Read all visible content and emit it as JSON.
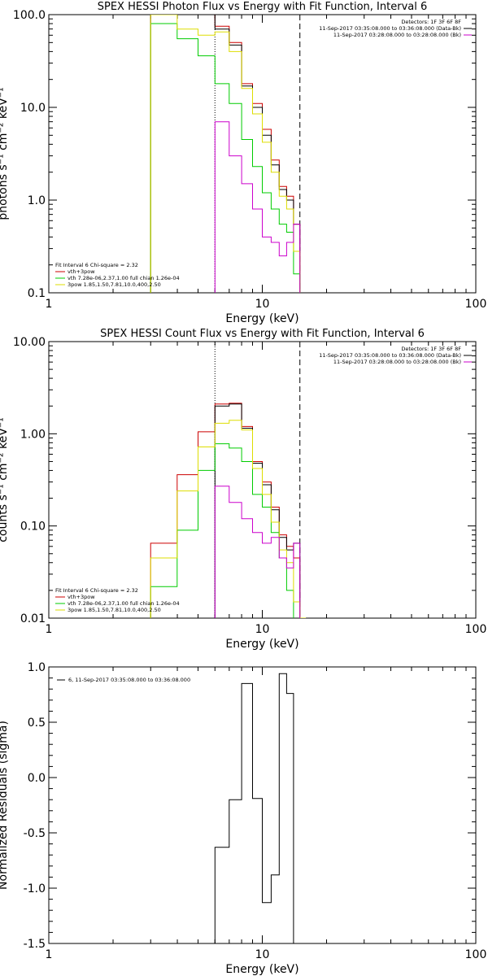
{
  "chart_data": [
    {
      "type": "line",
      "title": "SPEX HESSI Photon Flux vs Energy with Fit Function, Interval 6",
      "xlabel": "Energy (keV)",
      "ylabel": "photons s⁻¹ cm⁻² keV⁻¹",
      "xscale": "log",
      "yscale": "log",
      "xlim": [
        1,
        100
      ],
      "ylim": [
        0.1,
        100
      ],
      "xticks": [
        "1",
        "10",
        "100"
      ],
      "yticks": [
        "0.1",
        "1.0",
        "10.0",
        "100.0"
      ],
      "grid": false,
      "vlines": [
        {
          "x": 6.0,
          "style": "dotted",
          "color": "#000000"
        },
        {
          "x": 15.0,
          "style": "dashed",
          "color": "#000000"
        }
      ],
      "legend_top_right": [
        {
          "text": "Detectors: 1F 3F 6F 8F",
          "color": "#000000"
        },
        {
          "text": "11-Sep-2017 03:35:08.000 to 03:36:08.000 (Data-Bk)",
          "color": "#000000"
        },
        {
          "text": "11-Sep-2017 03:28:08.000 to 03:28:08.000 (Bk)",
          "color": "#cc00cc"
        }
      ],
      "legend_bottom_left": [
        {
          "text": "Fit Interval 6   Chi-square = 2.32",
          "color": "#000000"
        },
        {
          "text": "vth+3pow",
          "color": "#cc0000"
        },
        {
          "text": "vth 7.28e-06,2.37,1.00  full chian 1.26e-04",
          "color": "#00cc00"
        },
        {
          "text": "3pow 1.85,1.50,7.81,10.0,400,2.50",
          "color": "#dddd00"
        }
      ],
      "edges": [
        3.0,
        3.99,
        5.0,
        6.0,
        7.0,
        8.0,
        9.0,
        10.0,
        11.0,
        12.0,
        13.0,
        14.0,
        15.0
      ],
      "series": [
        {
          "color": "#cc0000",
          "values": [
            100,
            100,
            100,
            75,
            50,
            18,
            11,
            5.8,
            2.7,
            1.4,
            1.1,
            0.55
          ]
        },
        {
          "color": "#000000",
          "values": [
            100,
            100,
            100,
            70,
            47,
            17,
            10,
            5.0,
            2.4,
            1.3,
            1.0,
            0.55
          ]
        },
        {
          "color": "#00cc00",
          "values": [
            80,
            55,
            36,
            18,
            11,
            4.5,
            2.3,
            1.2,
            0.8,
            0.55,
            0.45,
            0.16
          ]
        },
        {
          "color": "#dddd00",
          "values": [
            100,
            70,
            60,
            65,
            40,
            16,
            8.5,
            4.2,
            2.0,
            1.1,
            0.8,
            0.28
          ]
        },
        {
          "color": "#cc00cc",
          "values": [
            null,
            null,
            null,
            7.0,
            3.0,
            1.5,
            0.8,
            0.4,
            0.35,
            0.25,
            0.35,
            0.55
          ]
        }
      ]
    },
    {
      "type": "line",
      "title": "SPEX HESSI Count Flux vs Energy with Fit Function, Interval 6",
      "xlabel": "Energy (keV)",
      "ylabel": "counts s⁻¹ cm⁻² keV⁻¹",
      "xscale": "log",
      "yscale": "log",
      "xlim": [
        1,
        100
      ],
      "ylim": [
        0.01,
        10
      ],
      "xticks": [
        "1",
        "10",
        "100"
      ],
      "yticks": [
        "0.01",
        "0.10",
        "1.00",
        "10.00"
      ],
      "grid": false,
      "vlines": [
        {
          "x": 6.0,
          "style": "dotted",
          "color": "#000000"
        },
        {
          "x": 15.0,
          "style": "dashed",
          "color": "#000000"
        }
      ],
      "legend_top_right": [
        {
          "text": "Detectors: 1F 3F 6F 8F",
          "color": "#000000"
        },
        {
          "text": "11-Sep-2017 03:35:08.000 to 03:36:08.000 (Data-Bk)",
          "color": "#000000"
        },
        {
          "text": "11-Sep-2017 03:28:08.000 to 03:28:08.000 (Bk)",
          "color": "#cc00cc"
        }
      ],
      "legend_bottom_left": [
        {
          "text": "Fit Interval 6   Chi-square = 2.32",
          "color": "#000000"
        },
        {
          "text": "vth+3pow",
          "color": "#cc0000"
        },
        {
          "text": "vth 7.28e-06,2.37,1.00  full chian 1.26e-04",
          "color": "#00cc00"
        },
        {
          "text": "3pow 1.85,1.50,7.81,10.0,400,2.50",
          "color": "#dddd00"
        }
      ],
      "edges": [
        3.0,
        3.99,
        5.0,
        6.0,
        7.0,
        8.0,
        9.0,
        10.0,
        11.0,
        12.0,
        13.0,
        14.0,
        15.0,
        16.0
      ],
      "series": [
        {
          "color": "#cc0000",
          "values": [
            0.065,
            0.36,
            1.05,
            2.1,
            2.15,
            1.2,
            0.5,
            0.3,
            0.16,
            0.08,
            0.06,
            0.045,
            0.01
          ]
        },
        {
          "color": "#000000",
          "values": [
            null,
            null,
            null,
            2.0,
            2.1,
            1.15,
            0.48,
            0.28,
            0.15,
            0.075,
            0.055,
            0.065,
            0.01
          ]
        },
        {
          "color": "#00cc00",
          "values": [
            0.022,
            0.09,
            0.4,
            0.78,
            0.7,
            0.5,
            0.22,
            0.16,
            0.085,
            0.045,
            0.02,
            null,
            null
          ]
        },
        {
          "color": "#dddd00",
          "values": [
            0.045,
            0.24,
            0.72,
            1.3,
            1.4,
            1.1,
            0.42,
            0.22,
            0.11,
            0.055,
            0.04,
            0.015,
            0.01
          ]
        },
        {
          "color": "#cc00cc",
          "values": [
            null,
            null,
            null,
            0.27,
            0.18,
            0.12,
            0.085,
            0.065,
            0.075,
            0.045,
            0.035,
            0.065,
            null
          ]
        }
      ]
    },
    {
      "type": "line",
      "title": "",
      "xlabel": "Energy (keV)",
      "ylabel": "Normalized Residuals (sigma)",
      "xscale": "log",
      "yscale": "linear",
      "xlim": [
        1,
        100
      ],
      "ylim": [
        -1.5,
        1.0
      ],
      "xticks": [
        "1",
        "10",
        "100"
      ],
      "yticks": [
        "-1.5",
        "-1.0",
        "-0.5",
        "0.0",
        "0.5",
        "1.0"
      ],
      "grid": false,
      "legend": [
        {
          "text": "6, 11-Sep-2017 03:35:08.000 to 03:36:08.000",
          "color": "#000000"
        }
      ],
      "edges": [
        6.0,
        7.0,
        8.0,
        9.0,
        10.0,
        11.0,
        12.0,
        13.0,
        14.0,
        15.0
      ],
      "series": [
        {
          "color": "#000000",
          "values": [
            -0.63,
            -0.2,
            0.85,
            -0.19,
            -1.13,
            -0.88,
            0.94,
            0.76,
            null
          ]
        }
      ]
    }
  ]
}
